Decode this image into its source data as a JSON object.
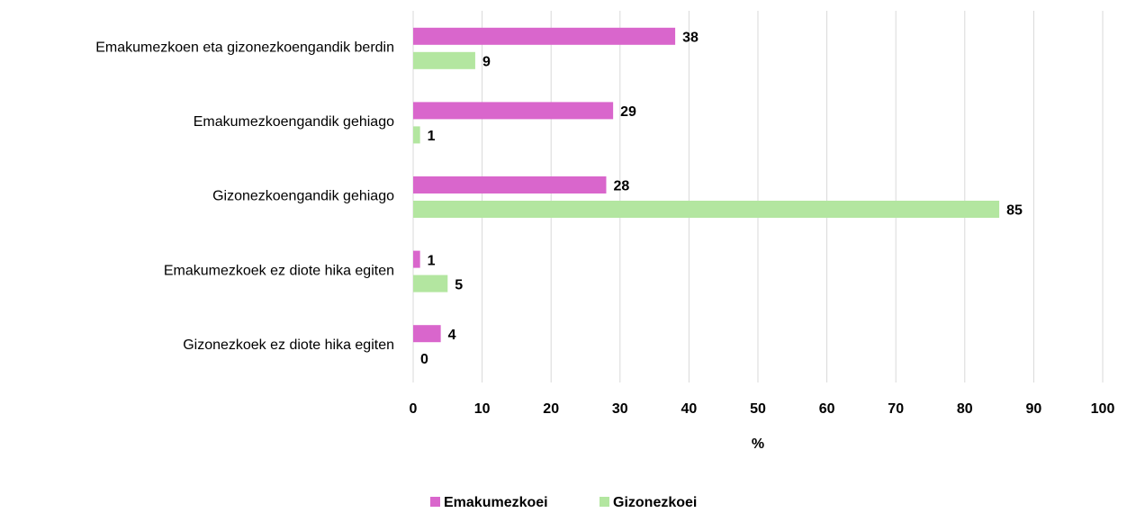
{
  "chart_data": {
    "type": "bar",
    "orientation": "horizontal",
    "categories": [
      "Emakumezkoen eta gizonezkoengandik berdin",
      "Emakumezkoengandik gehiago",
      "Gizonezkoengandik gehiago",
      "Emakumezkoek ez diote hika egiten",
      "Gizonezkoek ez diote hika egiten"
    ],
    "series": [
      {
        "name": "Emakumezkoei",
        "color": "#d966cc",
        "values": [
          38,
          29,
          28,
          1,
          4
        ]
      },
      {
        "name": "Gizonezkoei",
        "color": "#b3e6a0",
        "values": [
          9,
          1,
          85,
          5,
          0
        ]
      }
    ],
    "xlabel": "%",
    "xlim": [
      0,
      100
    ],
    "xticks": [
      0,
      10,
      20,
      30,
      40,
      50,
      60,
      70,
      80,
      90,
      100
    ],
    "grid": true,
    "legend": "bottom"
  }
}
